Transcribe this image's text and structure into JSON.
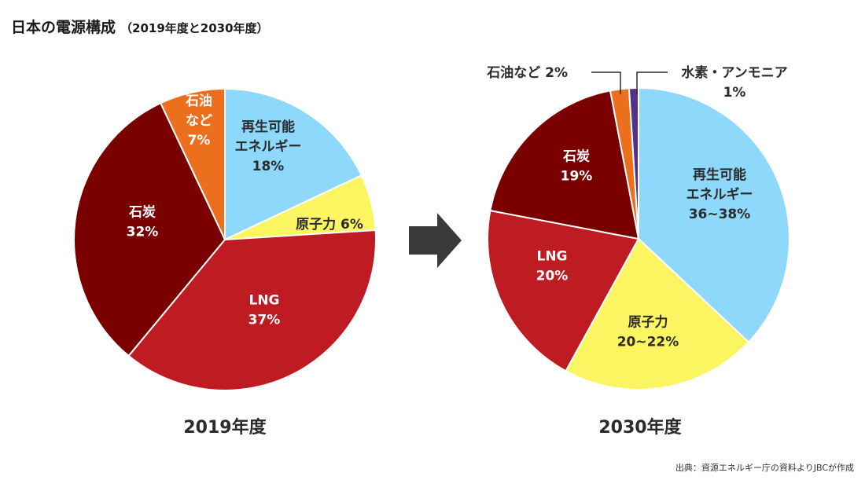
{
  "title": "日本の電源構成",
  "subtitle": "（2019年度と2030年度）",
  "source": "出典：資源エネルギー庁の資料よりJBCが作成",
  "arrow_icon": "right-arrow-icon",
  "colors": {
    "renewable": "#8dd8fb",
    "nuclear": "#fcf562",
    "lng": "#bf1b22",
    "coal": "#7a0000",
    "oil": "#ec6f1e",
    "hydrogen": "#54328a",
    "dark_text": "#2b2b2b",
    "light_text": "#ffffff"
  },
  "chart_data": [
    {
      "type": "pie",
      "label": "2019年度",
      "slices": [
        {
          "key": "renewable",
          "lines": [
            "再生可能",
            "エネルギー",
            "18%"
          ],
          "value": 18,
          "color": "#8dd8fb",
          "text_color": "#2b2b2b"
        },
        {
          "key": "nuclear",
          "lines": [
            "原子力 6%"
          ],
          "value": 6,
          "color": "#fcf562",
          "text_color": "#2b2b2b"
        },
        {
          "key": "lng",
          "lines": [
            "LNG",
            "37%"
          ],
          "value": 37,
          "color": "#bf1b22",
          "text_color": "#ffffff"
        },
        {
          "key": "coal",
          "lines": [
            "石炭",
            "32%"
          ],
          "value": 32,
          "color": "#7a0000",
          "text_color": "#ffffff"
        },
        {
          "key": "oil",
          "lines": [
            "石油",
            "など",
            "7%"
          ],
          "value": 7,
          "color": "#ec6f1e",
          "text_color": "#ffffff"
        }
      ]
    },
    {
      "type": "pie",
      "label": "2030年度",
      "slices": [
        {
          "key": "renewable",
          "lines": [
            "再生可能",
            "エネルギー",
            "36~38%"
          ],
          "value": 37,
          "color": "#8dd8fb",
          "text_color": "#2b2b2b"
        },
        {
          "key": "nuclear",
          "lines": [
            "原子力",
            "20~22%"
          ],
          "value": 21,
          "color": "#fcf562",
          "text_color": "#2b2b2b"
        },
        {
          "key": "lng",
          "lines": [
            "LNG",
            "20%"
          ],
          "value": 20,
          "color": "#bf1b22",
          "text_color": "#ffffff"
        },
        {
          "key": "coal",
          "lines": [
            "石炭",
            "19%"
          ],
          "value": 19,
          "color": "#7a0000",
          "text_color": "#ffffff"
        },
        {
          "key": "oil",
          "lines": [
            "石油など 2%"
          ],
          "value": 2,
          "color": "#ec6f1e",
          "text_color": "#2b2b2b",
          "callout": true
        },
        {
          "key": "hydrogen",
          "lines": [
            "水素・アンモニア",
            "1%"
          ],
          "value": 1,
          "color": "#54328a",
          "text_color": "#2b2b2b",
          "callout": true
        }
      ]
    }
  ]
}
